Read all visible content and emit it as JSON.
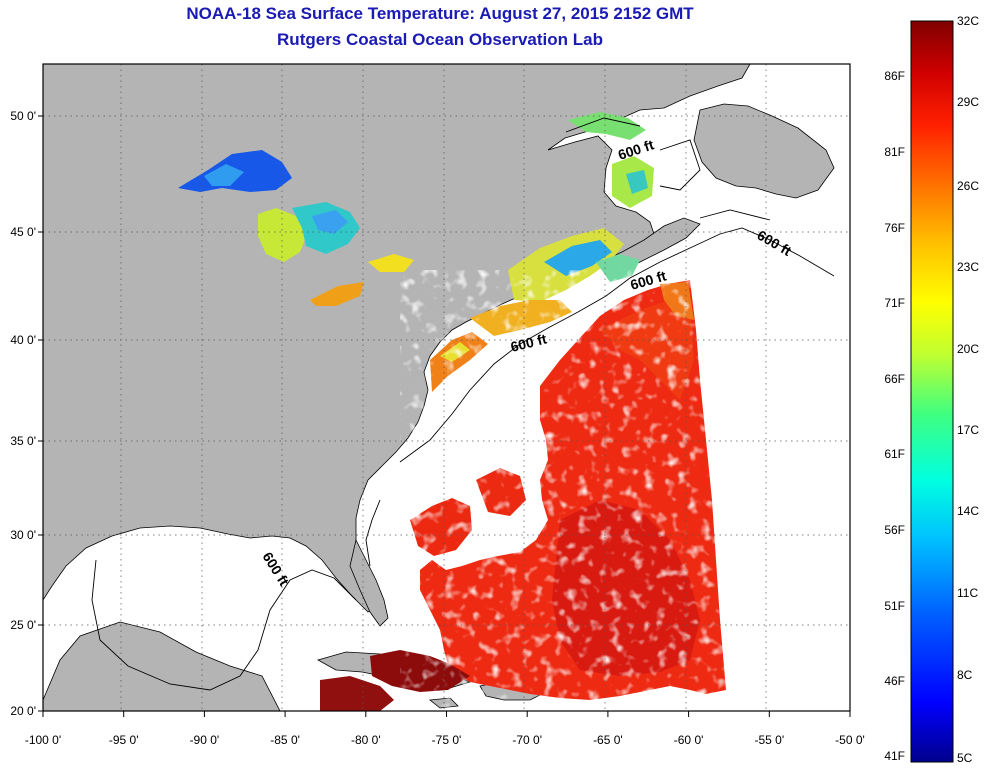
{
  "title": "NOAA-18 Sea Surface Temperature:  August 27, 2015 2152 GMT",
  "subtitle": "Rutgers Coastal Ocean Observation Lab",
  "map": {
    "lon_ticks": [
      "-100 0'",
      "-95 0'",
      "-90 0'",
      "-85 0'",
      "-80 0'",
      "-75 0'",
      "-70 0'",
      "-65 0'",
      "-60 0'",
      "-55 0'",
      "-50 0'"
    ],
    "lon_values": [
      -100,
      -95,
      -90,
      -85,
      -80,
      -75,
      -70,
      -65,
      -60,
      -55,
      -50
    ],
    "lat_ticks": [
      "50 0'",
      "45 0'",
      "40 0'",
      "35 0'",
      "30 0'",
      "25 0'",
      "20 0'"
    ],
    "lat_values": [
      50,
      45,
      40,
      35,
      30,
      25,
      20
    ],
    "lon_range": [
      -100,
      -50
    ],
    "lat_range": [
      20,
      52.3
    ],
    "grid": "dotted",
    "land_color": "#b4b4b4",
    "isobath_labels": [
      "600 ft",
      "600 ft",
      "600 ft",
      "600 ft",
      "600 ft"
    ]
  },
  "colorbar": {
    "fahrenheit": [
      "86F",
      "81F",
      "76F",
      "71F",
      "66F",
      "61F",
      "56F",
      "51F",
      "46F",
      "41F"
    ],
    "celsius": [
      "32C",
      "29C",
      "26C",
      "23C",
      "20C",
      "17C",
      "14C",
      "11C",
      "8C",
      "5C"
    ],
    "colors": [
      "#00008c",
      "#0000ff",
      "#0060ff",
      "#00c0ff",
      "#00ffe0",
      "#40ff80",
      "#c0ff30",
      "#ffff00",
      "#ffc000",
      "#ff7000",
      "#ff2000",
      "#d00000",
      "#800000"
    ]
  }
}
